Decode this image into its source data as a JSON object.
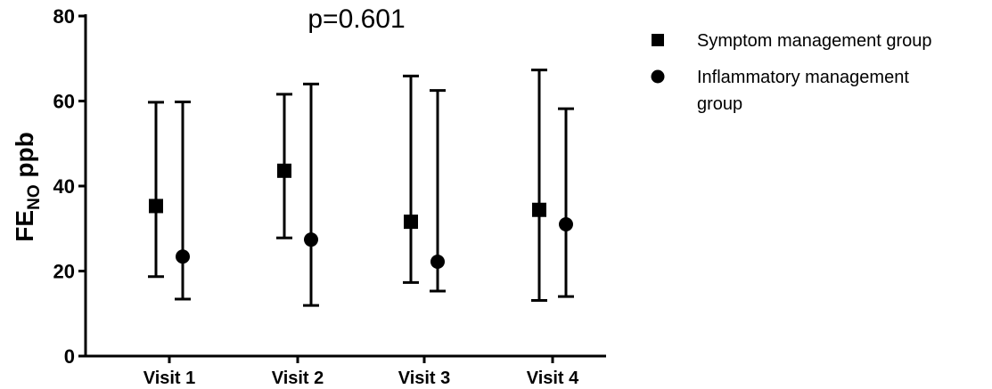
{
  "chart_data": {
    "type": "scatter",
    "annotation": "p=0.601",
    "ylabel": {
      "main": "FE",
      "sub": "NO",
      "unit": " ppb"
    },
    "xlabel": "",
    "ylim": [
      0,
      80
    ],
    "yticks": [
      0,
      20,
      40,
      60,
      80
    ],
    "ytick_labels": [
      "0",
      "20",
      "40",
      "60",
      "80"
    ],
    "categories": [
      "Visit 1",
      "Visit 2",
      "Visit 3",
      "Visit 4"
    ],
    "series": [
      {
        "name": "Symptom management group",
        "marker": "square",
        "values": [
          35.3,
          43.6,
          31.6,
          34.4
        ],
        "error_low": [
          18.7,
          27.8,
          17.3,
          13.1
        ],
        "error_high": [
          59.7,
          61.6,
          65.9,
          67.3
        ]
      },
      {
        "name": "Inflammatory management group",
        "marker": "circle",
        "values": [
          23.4,
          27.4,
          22.2,
          31.0
        ],
        "error_low": [
          13.4,
          11.9,
          15.3,
          14.0
        ],
        "error_high": [
          59.8,
          64.0,
          62.5,
          58.2
        ]
      }
    ],
    "legend": {
      "placement": "right",
      "items": [
        {
          "marker": "square",
          "lines": [
            "Symptom management group"
          ]
        },
        {
          "marker": "circle",
          "lines": [
            "Inflammatory management",
            "group"
          ]
        }
      ]
    },
    "colors": {
      "marks": "#000000"
    },
    "grid": false
  }
}
